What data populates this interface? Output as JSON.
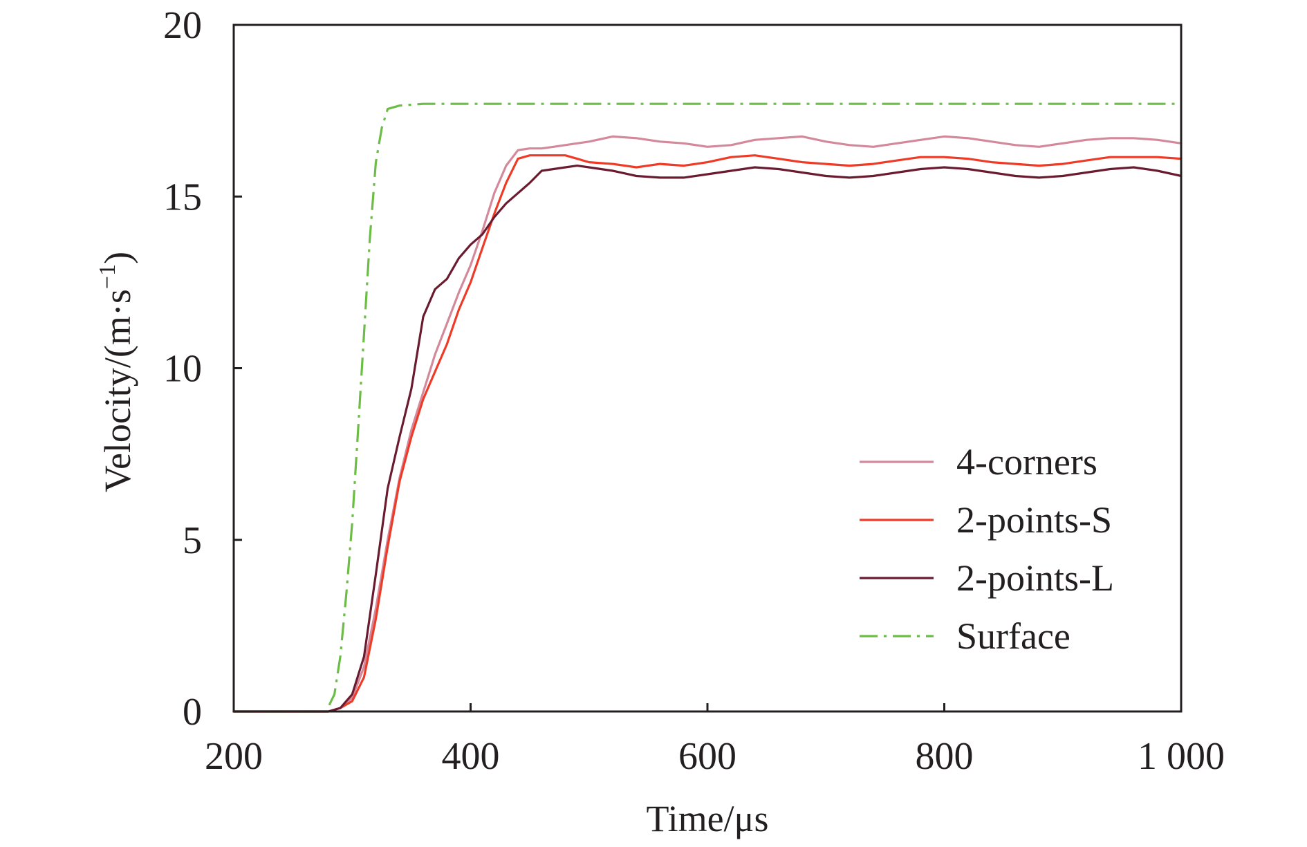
{
  "chart_data": {
    "type": "line",
    "xlabel": "Time/μs",
    "ylabel": "Velocity/(m·s",
    "ylabel_sup": "−1",
    "ylabel_close": ")",
    "xlim": [
      200,
      1000
    ],
    "ylim": [
      0,
      20
    ],
    "x_ticks": [
      200,
      400,
      600,
      800,
      1000
    ],
    "x_tick_labels": [
      "200",
      "400",
      "600",
      "800",
      "1 000"
    ],
    "y_ticks": [
      0,
      5,
      10,
      15,
      20
    ],
    "y_tick_labels": [
      "0",
      "5",
      "10",
      "15",
      "20"
    ],
    "grid": false,
    "legend_position": "bottom-right",
    "series": [
      {
        "name": "4-corners",
        "color": "#d4899b",
        "dash": "solid",
        "x": [
          200,
          280,
          290,
          300,
          310,
          320,
          330,
          340,
          350,
          360,
          370,
          380,
          390,
          400,
          410,
          420,
          430,
          440,
          450,
          460,
          470,
          480,
          490,
          500,
          520,
          540,
          560,
          580,
          600,
          620,
          640,
          660,
          680,
          700,
          720,
          740,
          760,
          780,
          800,
          820,
          840,
          860,
          880,
          900,
          920,
          940,
          960,
          980,
          1000
        ],
        "y": [
          0,
          0,
          0.1,
          0.4,
          1.3,
          3.0,
          5.0,
          6.8,
          8.2,
          9.3,
          10.4,
          11.3,
          12.2,
          13.0,
          14.0,
          15.1,
          15.9,
          16.35,
          16.4,
          16.4,
          16.45,
          16.5,
          16.55,
          16.6,
          16.75,
          16.7,
          16.6,
          16.55,
          16.45,
          16.5,
          16.65,
          16.7,
          16.75,
          16.6,
          16.5,
          16.45,
          16.55,
          16.65,
          16.75,
          16.7,
          16.6,
          16.5,
          16.45,
          16.55,
          16.65,
          16.7,
          16.7,
          16.65,
          16.55
        ]
      },
      {
        "name": "2-points-S",
        "color": "#ee3b27",
        "dash": "solid",
        "x": [
          200,
          280,
          290,
          300,
          310,
          320,
          330,
          340,
          350,
          360,
          370,
          380,
          390,
          400,
          410,
          420,
          430,
          440,
          450,
          460,
          470,
          480,
          490,
          500,
          520,
          540,
          560,
          580,
          600,
          620,
          640,
          660,
          680,
          700,
          720,
          740,
          760,
          780,
          800,
          820,
          840,
          860,
          880,
          900,
          920,
          940,
          960,
          980,
          1000
        ],
        "y": [
          0,
          0,
          0.1,
          0.3,
          1.0,
          2.7,
          4.8,
          6.7,
          8.0,
          9.1,
          9.9,
          10.7,
          11.7,
          12.5,
          13.5,
          14.5,
          15.4,
          16.1,
          16.2,
          16.2,
          16.2,
          16.2,
          16.1,
          16.0,
          15.95,
          15.85,
          15.95,
          15.9,
          16.0,
          16.15,
          16.2,
          16.1,
          16.0,
          15.95,
          15.9,
          15.95,
          16.05,
          16.15,
          16.15,
          16.1,
          16.0,
          15.95,
          15.9,
          15.95,
          16.05,
          16.15,
          16.15,
          16.15,
          16.1
        ]
      },
      {
        "name": "2-points-L",
        "color": "#6a1b30",
        "dash": "solid",
        "x": [
          200,
          280,
          290,
          300,
          310,
          320,
          330,
          340,
          350,
          360,
          370,
          380,
          390,
          400,
          410,
          420,
          430,
          440,
          450,
          460,
          470,
          480,
          490,
          500,
          520,
          540,
          560,
          580,
          600,
          620,
          640,
          660,
          680,
          700,
          720,
          740,
          760,
          780,
          800,
          820,
          840,
          860,
          880,
          900,
          920,
          940,
          960,
          980,
          1000
        ],
        "y": [
          0,
          0,
          0.1,
          0.5,
          1.6,
          4.0,
          6.5,
          8.0,
          9.4,
          11.5,
          12.3,
          12.6,
          13.2,
          13.6,
          13.9,
          14.4,
          14.8,
          15.1,
          15.4,
          15.75,
          15.8,
          15.85,
          15.9,
          15.85,
          15.75,
          15.6,
          15.55,
          15.55,
          15.65,
          15.75,
          15.85,
          15.8,
          15.7,
          15.6,
          15.55,
          15.6,
          15.7,
          15.8,
          15.85,
          15.8,
          15.7,
          15.6,
          15.55,
          15.6,
          15.7,
          15.8,
          15.85,
          15.75,
          15.6
        ]
      },
      {
        "name": "Surface",
        "color": "#6cbd45",
        "dash": "dashdot",
        "x": [
          200,
          278,
          285,
          290,
          295,
          300,
          305,
          310,
          315,
          320,
          325,
          330,
          340,
          360,
          400,
          450,
          500,
          550,
          600,
          650,
          700,
          750,
          800,
          850,
          900,
          950,
          1000
        ],
        "y": [
          0,
          0,
          0.5,
          1.6,
          3.4,
          5.5,
          8.2,
          11.0,
          13.8,
          16.0,
          17.0,
          17.55,
          17.65,
          17.7,
          17.7,
          17.7,
          17.7,
          17.7,
          17.7,
          17.7,
          17.7,
          17.7,
          17.7,
          17.7,
          17.7,
          17.7,
          17.7
        ]
      }
    ]
  }
}
